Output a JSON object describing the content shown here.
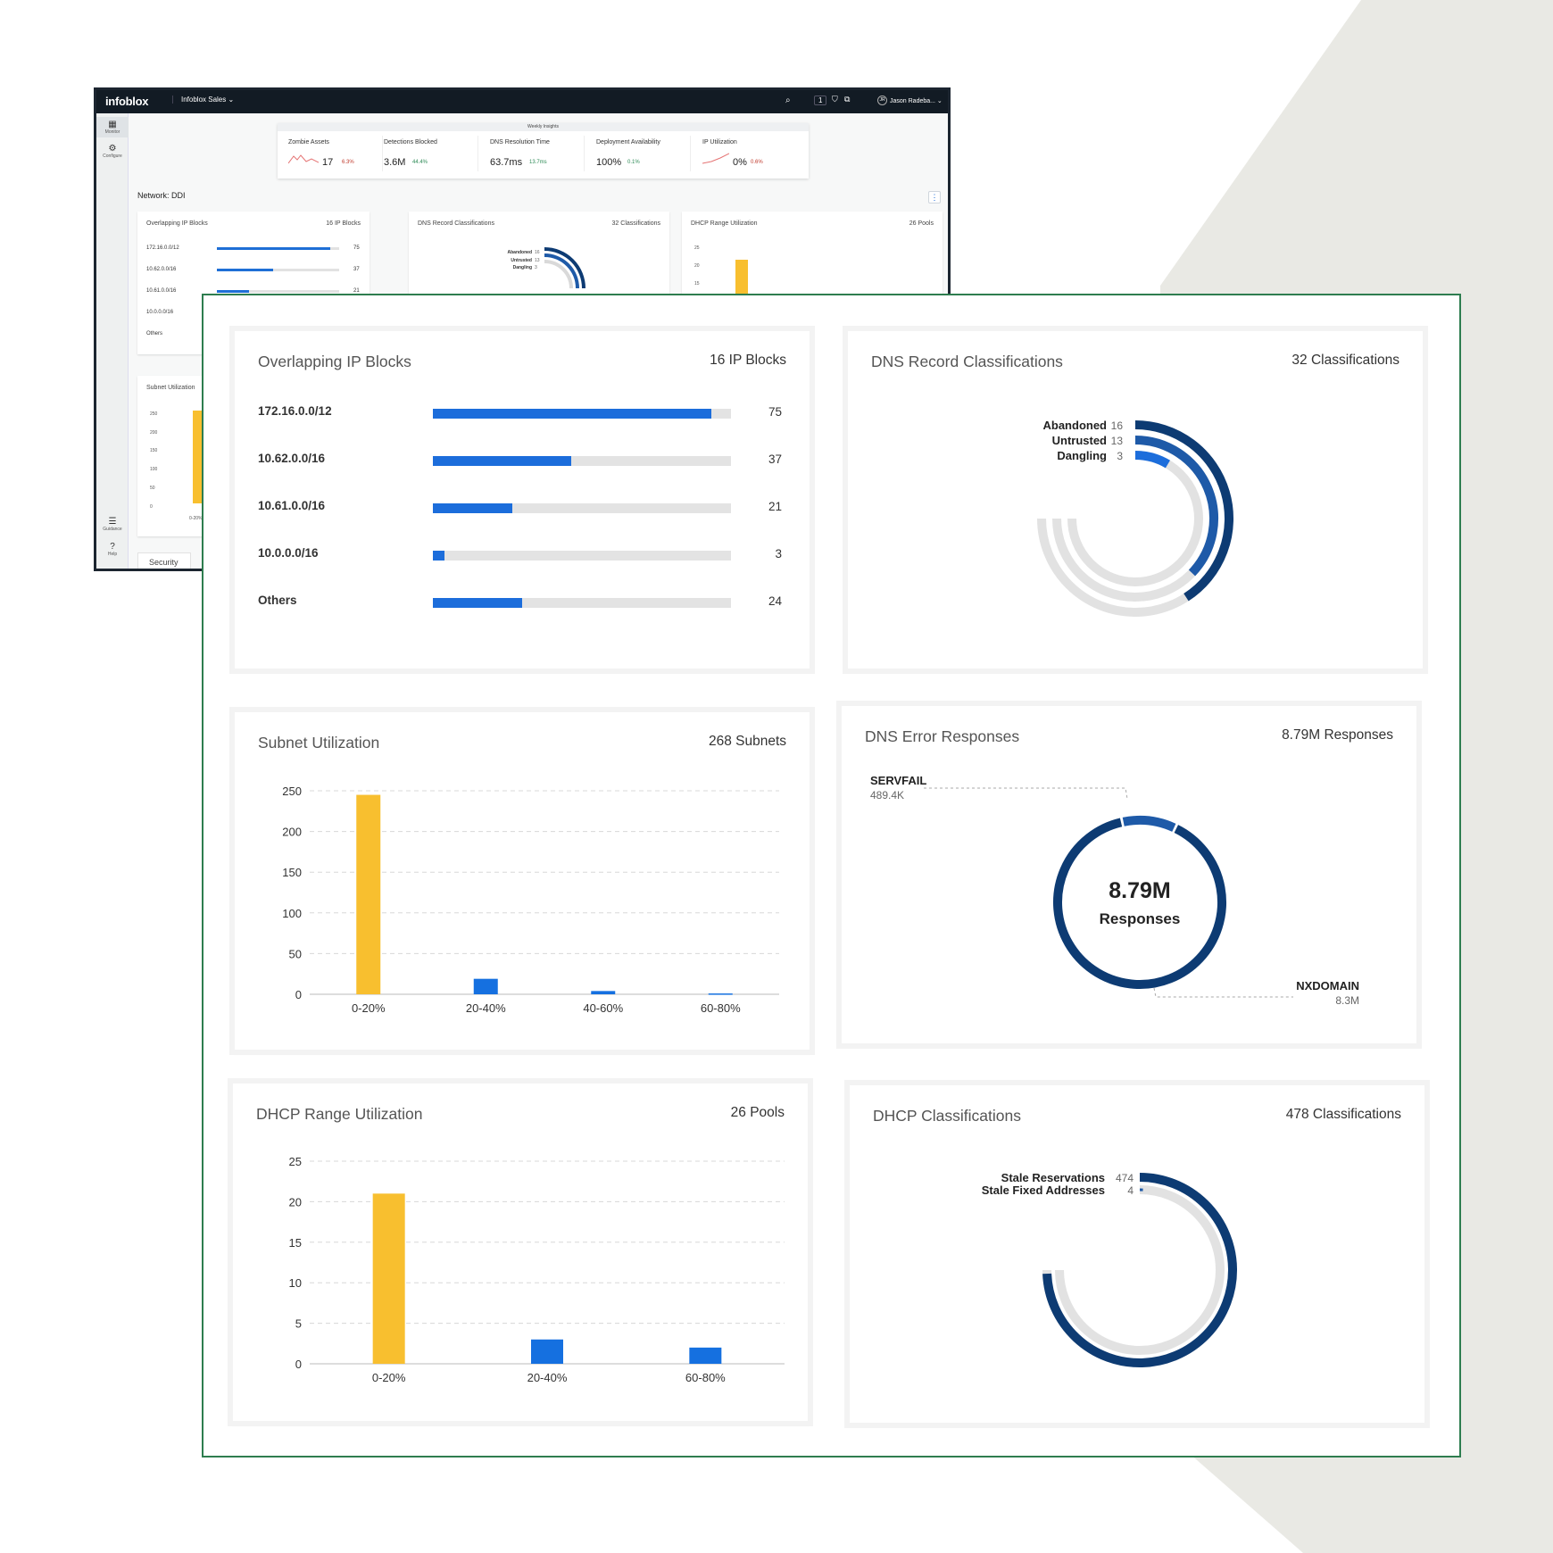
{
  "topbar": {
    "logo": "infoblox",
    "account": "Infoblox Sales ⌄",
    "search_icon": "search-icon",
    "counter": "1",
    "user": "Jason Radeba... ⌄",
    "avatar": "JR"
  },
  "rail": {
    "monitor": "Monitor",
    "configure": "Configure",
    "guidance": "Guidance",
    "help": "Help"
  },
  "weekly": {
    "title": "Weekly Insights",
    "kpis": [
      {
        "label": "Zombie Assets",
        "value": "17",
        "delta": "6.3%",
        "dir": "up"
      },
      {
        "label": "Detections Blocked",
        "value": "3.6M",
        "delta": "44.4%",
        "dir": "down"
      },
      {
        "label": "DNS Resolution Time",
        "value": "63.7ms",
        "delta": "13.7ms",
        "dir": "down"
      },
      {
        "label": "Deployment Availability",
        "value": "100%",
        "delta": "0.1%",
        "dir": "down"
      },
      {
        "label": "IP Utilization",
        "value": "0%",
        "delta": "0.6%",
        "dir": "up"
      }
    ]
  },
  "network_title": "Network: DDI",
  "mini": {
    "overlap_title": "Overlapping IP Blocks",
    "overlap_count": "16 IP Blocks",
    "overlap_rows": [
      {
        "label": "172.16.0.0/12",
        "value": "75",
        "frac": 0.93
      },
      {
        "label": "10.62.0.0/16",
        "value": "37",
        "frac": 0.46
      },
      {
        "label": "10.61.0.0/16",
        "value": "21",
        "frac": 0.26
      },
      {
        "label": "10.0.0.0/16",
        "value": "",
        "frac": 0
      },
      {
        "label": "Others",
        "value": "",
        "frac": 0
      }
    ],
    "dns_title": "DNS Record Classifications",
    "dns_count": "32 Classifications",
    "dns_legend": [
      {
        "label": "Abandoned",
        "value": "16"
      },
      {
        "label": "Untrusted",
        "value": "13"
      },
      {
        "label": "Dangling",
        "value": "3"
      }
    ],
    "dhcp_title": "DHCP Range Utilization",
    "dhcp_count": "26 Pools",
    "dhcp_ticks": [
      "25",
      "20",
      "15"
    ],
    "subnet_title": "Subnet Utilization",
    "subnet_ticks": [
      "250",
      "200",
      "150",
      "100",
      "50",
      "0"
    ],
    "subnet_cat": "0-20%",
    "security_tab": "Security"
  },
  "cards": {
    "overlap": {
      "title": "Overlapping IP Blocks",
      "count": "16 IP Blocks",
      "rows": [
        {
          "label": "172.16.0.0/12",
          "value": "75",
          "frac": 0.935
        },
        {
          "label": "10.62.0.0/16",
          "value": "37",
          "frac": 0.465
        },
        {
          "label": "10.61.0.0/16",
          "value": "21",
          "frac": 0.265
        },
        {
          "label": "10.0.0.0/16",
          "value": "3",
          "frac": 0.04
        },
        {
          "label": "Others",
          "value": "24",
          "frac": 0.3
        }
      ]
    },
    "dns_records": {
      "title": "DNS Record Classifications",
      "count": "32 Classifications",
      "items": [
        {
          "label": "Abandoned",
          "value": "16",
          "color": "#0d3b73"
        },
        {
          "label": "Untrusted",
          "value": "13",
          "color": "#1e5aa8"
        },
        {
          "label": "Dangling",
          "value": "3",
          "color": "#1c6ddb"
        }
      ]
    },
    "subnet": {
      "title": "Subnet Utilization",
      "count": "268 Subnets"
    },
    "dns_errors": {
      "title": "DNS Error Responses",
      "count": "8.79M Responses",
      "center_value": "8.79M",
      "center_label": "Responses",
      "items": [
        {
          "label": "SERVFAIL",
          "value": "489.4K",
          "color": "#1e5aa8"
        },
        {
          "label": "NXDOMAIN",
          "value": "8.3M",
          "color": "#0d3b73"
        }
      ]
    },
    "dhcp_range": {
      "title": "DHCP Range Utilization",
      "count": "26 Pools"
    },
    "dhcp_class": {
      "title": "DHCP Classifications",
      "count": "478 Classifications",
      "items": [
        {
          "label": "Stale Reservations",
          "value": "474",
          "color": "#0d3b73"
        },
        {
          "label": "Stale Fixed Addresses",
          "value": "4",
          "color": "#1e5aa8"
        }
      ]
    }
  },
  "chart_data": [
    {
      "type": "bar",
      "title": "Overlapping IP Blocks",
      "categories": [
        "172.16.0.0/12",
        "10.62.0.0/16",
        "10.61.0.0/16",
        "10.0.0.0/16",
        "Others"
      ],
      "values": [
        75,
        37,
        21,
        3,
        24
      ]
    },
    {
      "type": "pie",
      "title": "DNS Record Classifications",
      "categories": [
        "Abandoned",
        "Untrusted",
        "Dangling"
      ],
      "values": [
        16,
        13,
        3
      ]
    },
    {
      "type": "bar",
      "title": "Subnet Utilization",
      "categories": [
        "0-20%",
        "20-40%",
        "40-60%",
        "60-80%"
      ],
      "values": [
        245,
        19,
        4,
        1
      ],
      "colors": [
        "#f8bf2f",
        "#1570e0",
        "#1570e0",
        "#1570e0"
      ],
      "yticks": [
        "0",
        "50",
        "100",
        "150",
        "200",
        "250"
      ],
      "ylim": [
        0,
        250
      ]
    },
    {
      "type": "pie",
      "title": "DNS Error Responses",
      "categories": [
        "SERVFAIL",
        "NXDOMAIN"
      ],
      "values": [
        489.4,
        8300
      ]
    },
    {
      "type": "bar",
      "title": "DHCP Range Utilization",
      "categories": [
        "0-20%",
        "20-40%",
        "60-80%"
      ],
      "values": [
        21,
        3,
        2
      ],
      "colors": [
        "#f8bf2f",
        "#1570e0",
        "#1570e0"
      ],
      "yticks": [
        "0",
        "5",
        "10",
        "15",
        "20",
        "25"
      ],
      "ylim": [
        0,
        25
      ]
    },
    {
      "type": "pie",
      "title": "DHCP Classifications",
      "categories": [
        "Stale Reservations",
        "Stale Fixed Addresses"
      ],
      "values": [
        474,
        4
      ]
    }
  ]
}
